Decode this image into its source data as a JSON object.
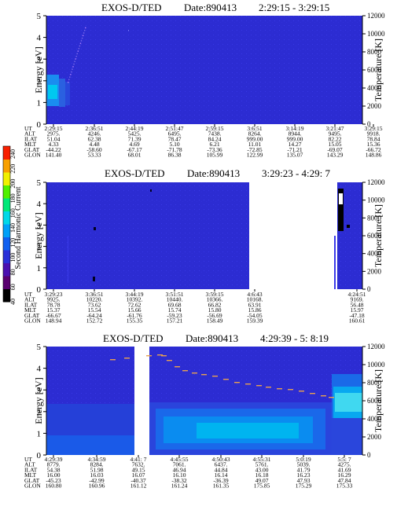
{
  "chart_data": [
    {
      "type": "heatmap",
      "title": "EXOS-D/TED",
      "date_label": "Date:890413",
      "time_range": "2:29:15 - 3:29:15",
      "ylabel": "Energy [eV]",
      "y2label": "Temperature [K]",
      "ylim": [
        0,
        5
      ],
      "y2lim": [
        0,
        12000
      ],
      "yticks": [
        "0",
        "1",
        "2",
        "3",
        "4",
        "5"
      ],
      "y2ticks": [
        "0",
        "2000",
        "4000",
        "6000",
        "8000",
        "10000",
        "12000"
      ],
      "row_labels": [
        "UT",
        "ALT",
        "ILAT",
        "MLT",
        "GLAT",
        "GLON"
      ],
      "columns": [
        [
          "2:29:15",
          "2975.",
          "51.04",
          "4.33",
          "-44.22",
          "141.40"
        ],
        [
          "2:36:51",
          "4246.",
          "62.38",
          "4.48",
          "-58.60",
          "53.33"
        ],
        [
          "2:44:19",
          "5425.",
          "71.39",
          "4.69",
          "-67.17",
          "68.01"
        ],
        [
          "2:51:47",
          "6495.",
          "78.47",
          "5.10",
          "-71.78",
          "86.38"
        ],
        [
          "2:59:15",
          "7438.",
          "84.24",
          "6.21",
          "-73.36",
          "105.99"
        ],
        [
          "3:6:51",
          "8264.",
          "999.00",
          "11.01",
          "-72.85",
          "122.99"
        ],
        [
          "3:14:19",
          "8944.",
          "999.00",
          "14.27",
          "-71.21",
          "135.07"
        ],
        [
          "3:21:47",
          "9495.",
          "82.22",
          "15.05",
          "-69.07",
          "143.29"
        ],
        [
          "3:29:15",
          "9918.",
          "78.84",
          "15.36",
          "-66.72",
          "148.86"
        ]
      ]
    },
    {
      "type": "heatmap",
      "title": "EXOS-D/TED",
      "date_label": "Date:890413",
      "time_range": "3:29:23 - 4:29: 7",
      "ylabel": "Energy [eV]",
      "y2label": "Temperature [K]",
      "ylim": [
        0,
        5
      ],
      "y2lim": [
        0,
        12000
      ],
      "yticks": [
        "0",
        "1",
        "2",
        "3",
        "4",
        "5"
      ],
      "y2ticks": [
        "0",
        "2000",
        "4000",
        "6000",
        "8000",
        "10000",
        "12000"
      ],
      "row_labels": [
        "UT",
        "ALT",
        "ILAT",
        "MLT",
        "GLAT",
        "GLON"
      ],
      "columns": [
        [
          "3:29:23",
          "9925.",
          "78.78",
          "15.37",
          "-66.67",
          "148.94"
        ],
        [
          "3:36:51",
          "10220.",
          "73.62",
          "15.54",
          "-64.24",
          "152.72"
        ],
        [
          "3:44:19",
          "10392.",
          "72.62",
          "15.66",
          "-61.76",
          "155.35"
        ],
        [
          "3:51:51",
          "10440.",
          "69.68",
          "15.74",
          "-59.23",
          "157.21"
        ],
        [
          "3:59:15",
          "10366.",
          "66.82",
          "15.80",
          "-56.69",
          "158.49"
        ],
        [
          "4:6:43",
          "10168.",
          "63.91",
          "15.86",
          "-54.05",
          "159.39"
        ],
        [
          "4:24:51",
          "9169.",
          "56.48",
          "15.97",
          "-47.18",
          "160.61"
        ]
      ],
      "colorbar": {
        "label": "Second Harmonic Current",
        "ticks": [
          "40",
          "60",
          "80",
          "100",
          "120",
          "140",
          "160",
          "180",
          "200",
          "220",
          "240"
        ],
        "colors": [
          "#000000",
          "#5a0070",
          "#4a10b0",
          "#2a30d8",
          "#1060f0",
          "#00a0f8",
          "#00d8e8",
          "#00e878",
          "#50f000",
          "#f0f000",
          "#f8a000",
          "#f82000"
        ]
      }
    },
    {
      "type": "heatmap",
      "title": "EXOS-D/TED",
      "date_label": "Date:890413",
      "time_range": "4:29:39 - 5: 8:19",
      "ylabel": "Energy [eV]",
      "y2label": "Temperature [K]",
      "ylim": [
        0,
        5
      ],
      "y2lim": [
        0,
        12000
      ],
      "yticks": [
        "0",
        "1",
        "2",
        "3",
        "4",
        "5"
      ],
      "y2ticks": [
        "0",
        "2000",
        "4000",
        "6000",
        "8000",
        "10000",
        "12000"
      ],
      "row_labels": [
        "UT",
        "ALT",
        "ILAT",
        "MLT",
        "GLAT",
        "GLON"
      ],
      "columns": [
        [
          "4:29:39",
          "8779.",
          "54.38",
          "16.00",
          "-45.23",
          "160.80"
        ],
        [
          "4:34:59",
          "8284.",
          "51.98",
          "16.03",
          "-42.99",
          "160.96"
        ],
        [
          "4:41: 7",
          "7632.",
          "49.15",
          "16.07",
          "-40.37",
          "161.12"
        ],
        [
          "4:45:55",
          "7061.",
          "46.94",
          "16.10",
          "-38.32",
          "161.24"
        ],
        [
          "4:50:43",
          "6437.",
          "44.84",
          "16.14",
          "-36.39",
          "161.35"
        ],
        [
          "4:55:31",
          "5761.",
          "43.00",
          "16.18",
          "49.07",
          "175.85"
        ],
        [
          "5:0:19",
          "5039.",
          "41.79",
          "16.23",
          "47.93",
          "175.29"
        ],
        [
          "5:5: 7",
          "4275.",
          "41.69",
          "16.29",
          "47.84",
          "175.33"
        ]
      ]
    }
  ]
}
